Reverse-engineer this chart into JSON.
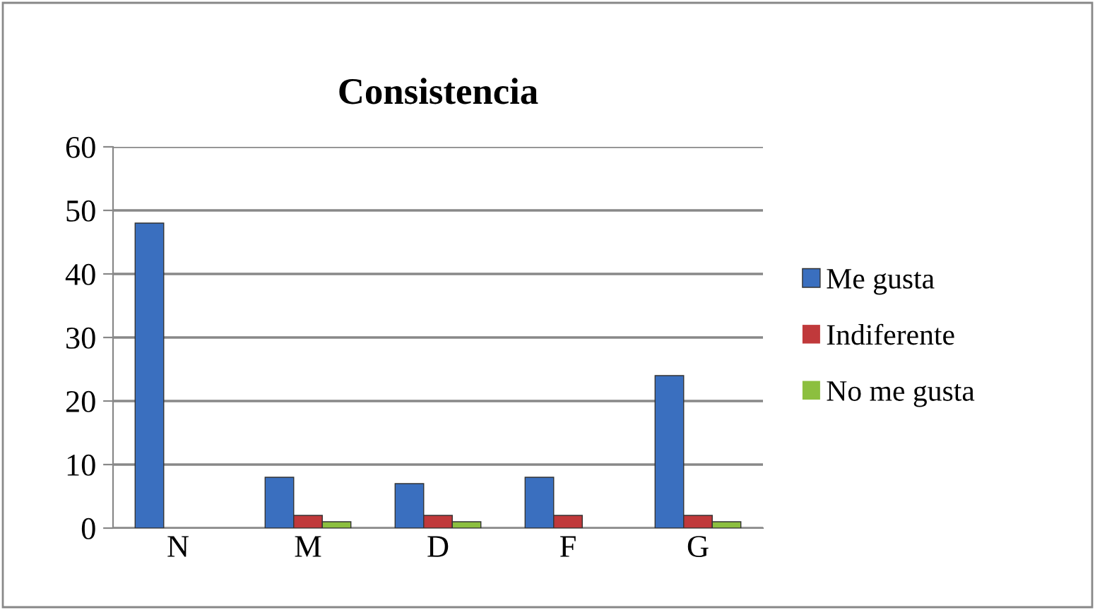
{
  "chart_data": {
    "type": "bar",
    "title": "Consistencia",
    "categories": [
      "N",
      "M",
      "D",
      "F",
      "G"
    ],
    "series": [
      {
        "name": "Me gusta",
        "color": "#3a6fbf",
        "values": [
          48,
          8,
          7,
          8,
          24
        ]
      },
      {
        "name": "Indiferente",
        "color": "#c0393b",
        "values": [
          0,
          2,
          2,
          2,
          2
        ]
      },
      {
        "name": "No me gusta",
        "color": "#8cbf3f",
        "values": [
          0,
          1,
          1,
          0,
          1
        ]
      }
    ],
    "ylim": [
      0,
      60
    ],
    "yticks": [
      0,
      10,
      20,
      30,
      40,
      50,
      60
    ],
    "grid": "y",
    "legend": "right"
  }
}
